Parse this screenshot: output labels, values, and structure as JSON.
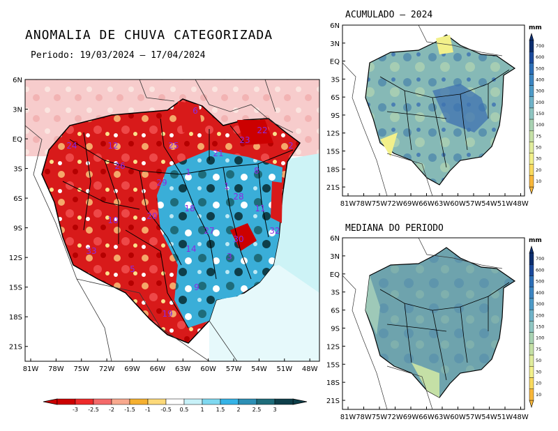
{
  "main": {
    "title": "ANOMALIA DE CHUVA CATEGORIZADA",
    "period": "Periodo: 19/03/2024 – 17/04/2024",
    "lat_labels": [
      "6N",
      "3N",
      "EQ",
      "3S",
      "6S",
      "9S",
      "12S",
      "15S",
      "18S",
      "21S"
    ],
    "lon_labels": [
      "81W",
      "78W",
      "75W",
      "72W",
      "69W",
      "66W",
      "63W",
      "60W",
      "57W",
      "54W",
      "51W",
      "48W"
    ],
    "basin_labels": [
      "6",
      "22",
      "24",
      "12",
      "25",
      "21",
      "23",
      "2",
      "8",
      "26",
      "1",
      "29",
      "28",
      "11",
      "18",
      "27",
      "30",
      "10",
      "32",
      "20",
      "33",
      "14",
      "3",
      "5",
      "9",
      "19",
      "1"
    ],
    "colorbar_labels": [
      "-3",
      "-2.5",
      "-2",
      "-1.5",
      "-1",
      "-0.5",
      "0.5",
      "1",
      "1.5",
      "2",
      "2.5",
      "3"
    ],
    "colorbar_colors": [
      "#cc0000",
      "#ee2a2a",
      "#f46a6a",
      "#f8a98e",
      "#f5b030",
      "#fcd97a",
      "#ffffff",
      "#c8f1f8",
      "#7fd8f0",
      "#35b3e6",
      "#2d8fb5",
      "#1e6c7a",
      "#0e3f4a"
    ]
  },
  "accumulated": {
    "title": "ACUMULADO – 2024",
    "lat_labels": [
      "6N",
      "3N",
      "EQ",
      "3S",
      "6S",
      "9S",
      "12S",
      "15S",
      "18S",
      "21S"
    ],
    "lon_labels": [
      "81W",
      "78W",
      "75W",
      "72W",
      "69W",
      "66W",
      "63W",
      "60W",
      "57W",
      "54W",
      "51W",
      "48W"
    ],
    "unit": "mm",
    "colorbar_labels": [
      "700",
      "600",
      "500",
      "400",
      "300",
      "200",
      "150",
      "100",
      "75",
      "50",
      "30",
      "20",
      "10"
    ]
  },
  "median": {
    "title": "MEDIANA DO PERIODO",
    "lat_labels": [
      "6N",
      "3N",
      "EQ",
      "3S",
      "6S",
      "9S",
      "12S",
      "15S",
      "18S",
      "21S"
    ],
    "lon_labels": [
      "81W",
      "78W",
      "75W",
      "72W",
      "69W",
      "66W",
      "63W",
      "60W",
      "57W",
      "54W",
      "51W",
      "48W"
    ],
    "unit": "mm",
    "colorbar_labels": [
      "700",
      "600",
      "500",
      "400",
      "300",
      "200",
      "150",
      "100",
      "75",
      "50",
      "30",
      "20",
      "10"
    ]
  },
  "vcolorbar_colors": [
    "#0d2e6e",
    "#1b4a9c",
    "#2d6fb7",
    "#3d86c2",
    "#4e9bc8",
    "#6fb3c9",
    "#8fc6c2",
    "#a9d3b3",
    "#c5e0a6",
    "#e0ec9c",
    "#f2f08a",
    "#f9da5e",
    "#f8b73a"
  ]
}
